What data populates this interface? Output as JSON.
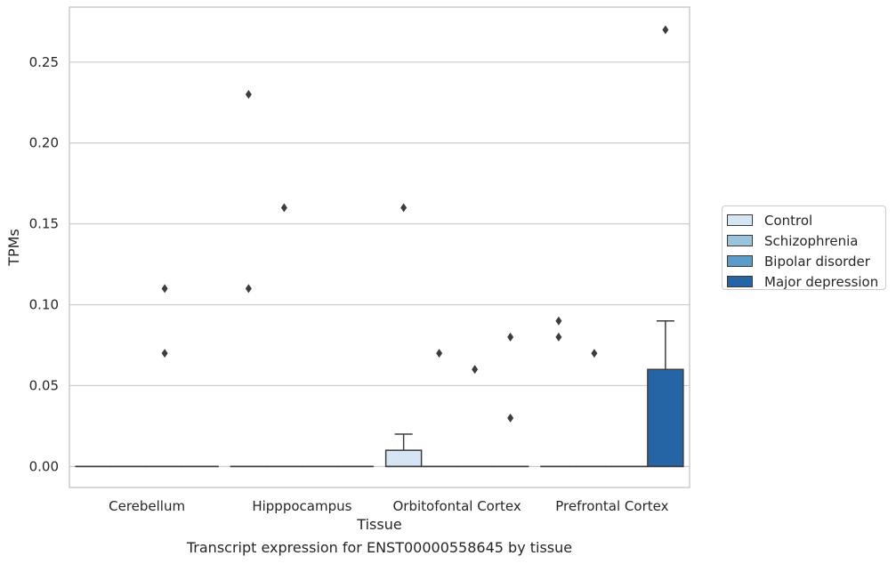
{
  "chart_data": {
    "type": "boxplot",
    "xlabel": "Tissue",
    "ylabel": "TPMs",
    "caption": "Transcript expression for ENST00000558645 by tissue",
    "ylim": [
      -0.013,
      0.284
    ],
    "yticks": [
      "0.00",
      "0.05",
      "0.10",
      "0.15",
      "0.20",
      "0.25"
    ],
    "ytick_values": [
      0,
      0.05,
      0.1,
      0.15,
      0.2,
      0.25
    ],
    "grid": true,
    "legend_position": "right",
    "categories": [
      "Cerebellum",
      "Hipppocampus",
      "Orbitofontal Cortex",
      "Prefrontal Cortex"
    ],
    "series": [
      {
        "name": "Control",
        "color": "#d6e5f3",
        "boxes": [
          {
            "q1": 0,
            "median": 0,
            "q3": 0,
            "whisker_low": 0,
            "whisker_high": 0,
            "outliers": []
          },
          {
            "q1": 0,
            "median": 0,
            "q3": 0,
            "whisker_low": 0,
            "whisker_high": 0,
            "outliers": [
              0.23,
              0.11
            ]
          },
          {
            "q1": 0,
            "median": 0,
            "q3": 0.01,
            "whisker_low": 0,
            "whisker_high": 0.02,
            "outliers": [
              0.16
            ]
          },
          {
            "q1": 0,
            "median": 0,
            "q3": 0,
            "whisker_low": 0,
            "whisker_high": 0,
            "outliers": [
              0.09,
              0.08
            ]
          }
        ]
      },
      {
        "name": "Schizophrenia",
        "color": "#9cc3dc",
        "boxes": [
          {
            "q1": 0,
            "median": 0,
            "q3": 0,
            "whisker_low": 0,
            "whisker_high": 0,
            "outliers": []
          },
          {
            "q1": 0,
            "median": 0,
            "q3": 0,
            "whisker_low": 0,
            "whisker_high": 0,
            "outliers": [
              0.16
            ]
          },
          {
            "q1": 0,
            "median": 0,
            "q3": 0,
            "whisker_low": 0,
            "whisker_high": 0,
            "outliers": [
              0.07
            ]
          },
          {
            "q1": 0,
            "median": 0,
            "q3": 0,
            "whisker_low": 0,
            "whisker_high": 0,
            "outliers": [
              0.07
            ]
          }
        ]
      },
      {
        "name": "Bipolar disorder",
        "color": "#5a9bc7",
        "boxes": [
          {
            "q1": 0,
            "median": 0,
            "q3": 0,
            "whisker_low": 0,
            "whisker_high": 0,
            "outliers": [
              0.11,
              0.07
            ]
          },
          {
            "q1": 0,
            "median": 0,
            "q3": 0,
            "whisker_low": 0,
            "whisker_high": 0,
            "outliers": []
          },
          {
            "q1": 0,
            "median": 0,
            "q3": 0,
            "whisker_low": 0,
            "whisker_high": 0,
            "outliers": [
              0.06
            ]
          },
          {
            "q1": 0,
            "median": 0,
            "q3": 0,
            "whisker_low": 0,
            "whisker_high": 0,
            "outliers": []
          }
        ]
      },
      {
        "name": "Major depression",
        "color": "#2665a5",
        "boxes": [
          {
            "q1": 0,
            "median": 0,
            "q3": 0,
            "whisker_low": 0,
            "whisker_high": 0,
            "outliers": []
          },
          {
            "q1": 0,
            "median": 0,
            "q3": 0,
            "whisker_low": 0,
            "whisker_high": 0,
            "outliers": []
          },
          {
            "q1": 0,
            "median": 0,
            "q3": 0,
            "whisker_low": 0,
            "whisker_high": 0,
            "outliers": [
              0.08,
              0.03
            ]
          },
          {
            "q1": 0,
            "median": 0,
            "q3": 0.06,
            "whisker_low": 0,
            "whisker_high": 0.09,
            "outliers": [
              0.27
            ]
          }
        ]
      }
    ]
  }
}
